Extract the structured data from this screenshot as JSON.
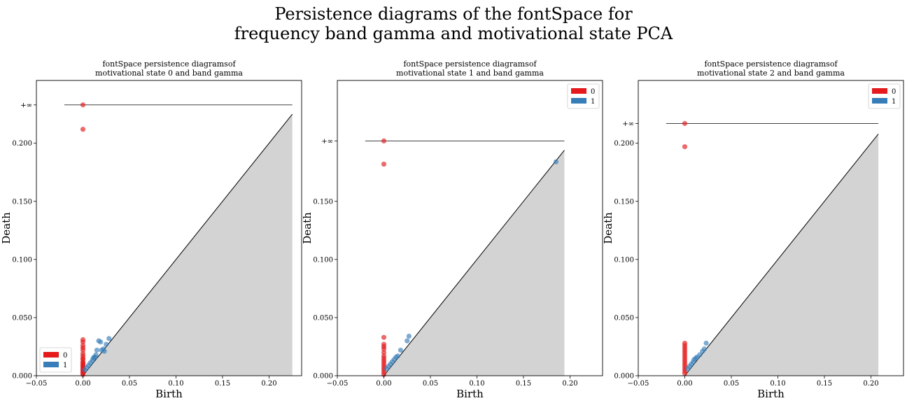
{
  "figure": {
    "title_lines": [
      "Persistence diagrams of the fontSpace for",
      "frequency band gamma and motivational state PCA"
    ]
  },
  "colors": {
    "dim0": "#e41a1c",
    "dim1": "#377eb8",
    "shade": "#d3d3d3"
  },
  "chart_data": [
    {
      "type": "scatter",
      "title_lines": [
        "fontSpace persistence diagramsof",
        "motivational state 0 and band gamma"
      ],
      "xlabel": "Birth",
      "ylabel": "Death",
      "xlim": [
        -0.05,
        0.235
      ],
      "ylim": [
        0.0,
        0.254
      ],
      "xticks": [
        "−0.05",
        "0.00",
        "0.05",
        "0.10",
        "0.15",
        "0.20"
      ],
      "xtick_values": [
        -0.05,
        0.0,
        0.05,
        0.1,
        0.15,
        0.2
      ],
      "yticks": [
        "0.000",
        "0.050",
        "0.100",
        "0.150",
        "0.200",
        "+∞"
      ],
      "ytick_values": [
        0.0,
        0.05,
        0.1,
        0.15,
        0.2,
        0.233
      ],
      "inf_value": 0.233,
      "diagonal_max": 0.225,
      "legend": {
        "position": "lower-left",
        "entries": [
          "0",
          "1"
        ]
      },
      "series": [
        {
          "name": "0",
          "points": [
            [
              0,
              0.233
            ],
            [
              0,
              0.212
            ],
            [
              0,
              0.031
            ],
            [
              0,
              0.029
            ],
            [
              0,
              0.026
            ],
            [
              0,
              0.024
            ],
            [
              0,
              0.022
            ],
            [
              0,
              0.019
            ],
            [
              0,
              0.017
            ],
            [
              0,
              0.015
            ],
            [
              0,
              0.014
            ],
            [
              0,
              0.012
            ],
            [
              0,
              0.011
            ],
            [
              0,
              0.01
            ],
            [
              0,
              0.009
            ],
            [
              0,
              0.008
            ],
            [
              0,
              0.007
            ],
            [
              0,
              0.006
            ],
            [
              0,
              0.005
            ],
            [
              0,
              0.004
            ],
            [
              0,
              0.003
            ],
            [
              0,
              0.002
            ],
            [
              0,
              0.001
            ]
          ]
        },
        {
          "name": "1",
          "points": [
            [
              0.002,
              0.005
            ],
            [
              0.004,
              0.007
            ],
            [
              0.006,
              0.009
            ],
            [
              0.008,
              0.011
            ],
            [
              0.01,
              0.013
            ],
            [
              0.011,
              0.015
            ],
            [
              0.012,
              0.016
            ],
            [
              0.013,
              0.016
            ],
            [
              0.014,
              0.018
            ],
            [
              0.015,
              0.022
            ],
            [
              0.017,
              0.03
            ],
            [
              0.019,
              0.029
            ],
            [
              0.02,
              0.022
            ],
            [
              0.022,
              0.023
            ],
            [
              0.023,
              0.021
            ],
            [
              0.025,
              0.027
            ],
            [
              0.028,
              0.032
            ]
          ]
        }
      ]
    },
    {
      "type": "scatter",
      "title_lines": [
        "fontSpace persistence diagramsof",
        "motivational state 1 and band gamma"
      ],
      "xlabel": "Birth",
      "ylabel": "Death",
      "xlim": [
        -0.05,
        0.235
      ],
      "ylim": [
        0.0,
        0.254
      ],
      "xticks": [
        "−0.05",
        "0.00",
        "0.05",
        "0.10",
        "0.15",
        "0.20"
      ],
      "xtick_values": [
        -0.05,
        0.0,
        0.05,
        0.1,
        0.15,
        0.2
      ],
      "yticks": [
        "0.000",
        "0.050",
        "0.100",
        "0.150",
        "+∞"
      ],
      "ytick_values": [
        0.0,
        0.05,
        0.1,
        0.15,
        0.202
      ],
      "inf_value": 0.202,
      "diagonal_max": 0.194,
      "legend": {
        "position": "top-right",
        "entries": [
          "0",
          "1"
        ]
      },
      "series": [
        {
          "name": "0",
          "points": [
            [
              0,
              0.202
            ],
            [
              0,
              0.182
            ],
            [
              0,
              0.033
            ],
            [
              0,
              0.027
            ],
            [
              0,
              0.025
            ],
            [
              0,
              0.023
            ],
            [
              0,
              0.02
            ],
            [
              0,
              0.017
            ],
            [
              0,
              0.015
            ],
            [
              0,
              0.013
            ],
            [
              0,
              0.011
            ],
            [
              0,
              0.009
            ],
            [
              0,
              0.007
            ],
            [
              0,
              0.005
            ],
            [
              0,
              0.003
            ],
            [
              0,
              0.001
            ]
          ]
        },
        {
          "name": "1",
          "points": [
            [
              0.003,
              0.006
            ],
            [
              0.005,
              0.008
            ],
            [
              0.007,
              0.01
            ],
            [
              0.009,
              0.012
            ],
            [
              0.011,
              0.014
            ],
            [
              0.013,
              0.016
            ],
            [
              0.015,
              0.017
            ],
            [
              0.018,
              0.022
            ],
            [
              0.025,
              0.03
            ],
            [
              0.027,
              0.034
            ],
            [
              0.185,
              0.184
            ]
          ]
        }
      ]
    },
    {
      "type": "scatter",
      "title_lines": [
        "fontSpace persistence diagramsof",
        "motivational state 2 and band gamma"
      ],
      "xlabel": "Birth",
      "ylabel": "Death",
      "xlim": [
        -0.05,
        0.235
      ],
      "ylim": [
        0.0,
        0.254
      ],
      "xticks": [
        "−0.05",
        "0.00",
        "0.05",
        "0.10",
        "0.15",
        "0.20"
      ],
      "xtick_values": [
        -0.05,
        0.0,
        0.05,
        0.1,
        0.15,
        0.2
      ],
      "yticks": [
        "0.000",
        "0.050",
        "0.100",
        "0.150",
        "0.200",
        "+∞"
      ],
      "ytick_values": [
        0.0,
        0.05,
        0.1,
        0.15,
        0.2,
        0.217
      ],
      "inf_value": 0.217,
      "diagonal_max": 0.208,
      "legend": {
        "position": "top-right",
        "entries": [
          "0",
          "1"
        ]
      },
      "series": [
        {
          "name": "0",
          "points": [
            [
              0,
              0.217
            ],
            [
              0,
              0.197
            ],
            [
              0,
              0.028
            ],
            [
              0,
              0.026
            ],
            [
              0,
              0.024
            ],
            [
              0,
              0.022
            ],
            [
              0,
              0.02
            ],
            [
              0,
              0.018
            ],
            [
              0,
              0.016
            ],
            [
              0,
              0.014
            ],
            [
              0,
              0.012
            ],
            [
              0,
              0.01
            ],
            [
              0,
              0.008
            ],
            [
              0,
              0.006
            ],
            [
              0,
              0.004
            ],
            [
              0,
              0.002
            ]
          ]
        },
        {
          "name": "1",
          "points": [
            [
              0.003,
              0.006
            ],
            [
              0.005,
              0.008
            ],
            [
              0.007,
              0.01
            ],
            [
              0.009,
              0.012
            ],
            [
              0.01,
              0.014
            ],
            [
              0.012,
              0.015
            ],
            [
              0.013,
              0.016
            ],
            [
              0.016,
              0.018
            ],
            [
              0.019,
              0.021
            ],
            [
              0.021,
              0.023
            ],
            [
              0.023,
              0.028
            ]
          ]
        }
      ]
    }
  ]
}
